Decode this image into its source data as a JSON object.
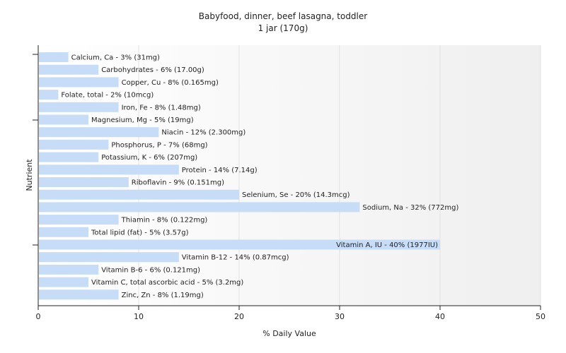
{
  "chart_data": {
    "type": "bar",
    "orientation": "horizontal",
    "title": "Babyfood, dinner, beef lasagna, toddler",
    "subtitle": "1 jar (170g)",
    "xlabel": "% Daily Value",
    "ylabel": "Nutrient",
    "xlim": [
      0,
      50
    ],
    "xticks": [
      "0",
      "10",
      "20",
      "30",
      "40",
      "50"
    ],
    "grid": true,
    "bar_color": "#c6dcf7",
    "categories": [
      "Calcium, Ca",
      "Carbohydrates",
      "Copper, Cu",
      "Folate, total",
      "Iron, Fe",
      "Magnesium, Mg",
      "Niacin",
      "Phosphorus, P",
      "Potassium, K",
      "Protein",
      "Riboflavin",
      "Selenium, Se",
      "Sodium, Na",
      "Thiamin",
      "Total lipid (fat)",
      "Vitamin A, IU",
      "Vitamin B-12",
      "Vitamin B-6",
      "Vitamin C, total ascorbic acid",
      "Zinc, Zn"
    ],
    "values": [
      3,
      6,
      8,
      2,
      8,
      5,
      12,
      7,
      6,
      14,
      9,
      20,
      32,
      8,
      5,
      40,
      14,
      6,
      5,
      8
    ],
    "labels": [
      "Calcium, Ca - 3% (31mg)",
      "Carbohydrates - 6% (17.00g)",
      "Copper, Cu - 8% (0.165mg)",
      "Folate, total - 2% (10mcg)",
      "Iron, Fe - 8% (1.48mg)",
      "Magnesium, Mg - 5% (19mg)",
      "Niacin - 12% (2.300mg)",
      "Phosphorus, P - 7% (68mg)",
      "Potassium, K - 6% (207mg)",
      "Protein - 14% (7.14g)",
      "Riboflavin - 9% (0.151mg)",
      "Selenium, Se - 20% (14.3mcg)",
      "Sodium, Na - 32% (772mg)",
      "Thiamin - 8% (0.122mg)",
      "Total lipid (fat) - 5% (3.57g)",
      "Vitamin A, IU - 40% (1977IU)",
      "Vitamin B-12 - 14% (0.87mcg)",
      "Vitamin B-6 - 6% (0.121mg)",
      "Vitamin C, total ascorbic acid - 5% (3.2mg)",
      "Zinc, Zn - 8% (1.19mg)"
    ]
  }
}
